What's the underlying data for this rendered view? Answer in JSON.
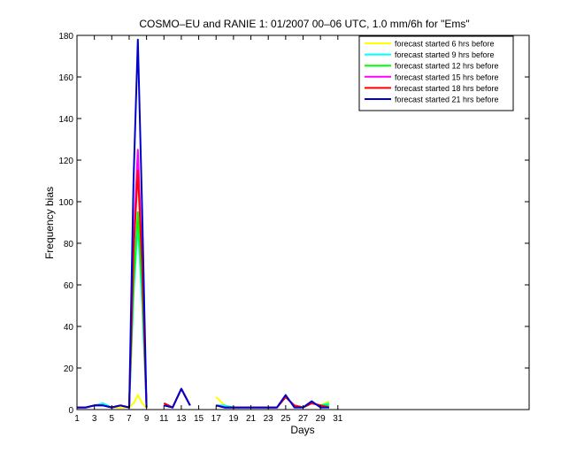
{
  "chart_data": {
    "type": "line",
    "title": "COSMO–EU and RANIE 1: 01/2007 00–06 UTC, 1.0 mm/6h for \"Ems\"",
    "xlabel": "Days",
    "ylabel": "Frequency bias",
    "xlim": [
      1,
      53
    ],
    "ylim": [
      0,
      180
    ],
    "xticks": [
      1,
      3,
      5,
      7,
      9,
      11,
      13,
      15,
      17,
      19,
      21,
      23,
      25,
      27,
      29,
      31
    ],
    "yticks": [
      0,
      20,
      40,
      60,
      80,
      100,
      120,
      140,
      160,
      180
    ],
    "grid": false,
    "legend_position": "top-right",
    "series": [
      {
        "name": "forecast started 6 hrs before",
        "color": "#ffff00",
        "x": [
          1,
          2,
          3,
          4,
          5,
          6,
          7,
          7.5,
          8,
          8.5,
          9,
          null,
          11,
          12,
          13,
          14,
          null,
          17,
          18,
          19,
          20,
          21,
          22,
          23,
          24,
          25,
          26,
          27,
          28,
          29,
          30
        ],
        "y": [
          1,
          1,
          2,
          2,
          1,
          1,
          1,
          3,
          7,
          3,
          1,
          null,
          3,
          1,
          10,
          2,
          null,
          6,
          2,
          1,
          1,
          1,
          1,
          1,
          1,
          6,
          2,
          1,
          3,
          2,
          4
        ]
      },
      {
        "name": "forecast started 9 hrs before",
        "color": "#00ffff",
        "x": [
          1,
          2,
          3,
          4,
          5,
          6,
          7,
          7.5,
          8,
          8.5,
          9,
          null,
          11,
          12,
          13,
          14,
          null,
          17,
          18,
          19,
          20,
          21,
          22,
          23,
          24,
          25,
          26,
          27,
          28,
          29,
          30
        ],
        "y": [
          1,
          1,
          2,
          3,
          1,
          2,
          1,
          55,
          90,
          50,
          1,
          null,
          3,
          1,
          10,
          2,
          null,
          2,
          2,
          1,
          1,
          1,
          1,
          1,
          1,
          6,
          2,
          1,
          3,
          2,
          3
        ]
      },
      {
        "name": "forecast started 12 hrs before",
        "color": "#00ff00",
        "x": [
          1,
          2,
          3,
          4,
          5,
          6,
          7,
          7.5,
          8,
          8.5,
          9,
          null,
          11,
          12,
          13,
          14,
          null,
          17,
          18,
          19,
          20,
          21,
          22,
          23,
          24,
          25,
          26,
          27,
          28,
          29,
          30
        ],
        "y": [
          1,
          1,
          2,
          2,
          1,
          2,
          1,
          60,
          95,
          58,
          1,
          null,
          3,
          1,
          10,
          2,
          null,
          2,
          1,
          1,
          1,
          1,
          1,
          1,
          1,
          6,
          2,
          1,
          3,
          2,
          2
        ]
      },
      {
        "name": "forecast started 15 hrs before",
        "color": "#ff00ff",
        "x": [
          1,
          2,
          3,
          4,
          5,
          6,
          7,
          7.5,
          8,
          8.5,
          9,
          null,
          11,
          12,
          13,
          14,
          null,
          17,
          18,
          19,
          20,
          21,
          22,
          23,
          24,
          25,
          26,
          27,
          28,
          29,
          30
        ],
        "y": [
          1,
          1,
          2,
          2,
          1,
          2,
          1,
          80,
          125,
          70,
          1,
          null,
          3,
          1,
          10,
          2,
          null,
          2,
          1,
          1,
          1,
          1,
          1,
          1,
          1,
          6,
          2,
          1,
          3,
          2,
          1
        ]
      },
      {
        "name": "forecast started 18 hrs before",
        "color": "#ff0000",
        "x": [
          1,
          2,
          3,
          4,
          5,
          6,
          7,
          7.5,
          8,
          8.5,
          9,
          null,
          11,
          12,
          13,
          14,
          null,
          17,
          18,
          19,
          20,
          21,
          22,
          23,
          24,
          25,
          26,
          27,
          28,
          29,
          30
        ],
        "y": [
          1,
          1,
          2,
          2,
          1,
          2,
          1,
          75,
          115,
          68,
          1,
          null,
          3,
          1,
          10,
          2,
          null,
          2,
          1,
          1,
          1,
          1,
          1,
          1,
          1,
          6,
          2,
          1,
          3,
          2,
          1
        ]
      },
      {
        "name": "forecast started 21 hrs before",
        "color": "#0000cc",
        "x": [
          1,
          2,
          3,
          4,
          5,
          6,
          7,
          7.5,
          8,
          8.5,
          9,
          null,
          11,
          12,
          13,
          14,
          null,
          17,
          18,
          19,
          20,
          21,
          22,
          23,
          24,
          25,
          26,
          27,
          28,
          29,
          30
        ],
        "y": [
          1,
          1,
          2,
          2,
          1,
          2,
          1,
          110,
          178,
          95,
          1,
          null,
          2,
          1,
          10,
          2,
          null,
          2,
          1,
          1,
          1,
          1,
          1,
          1,
          1,
          7,
          1,
          1,
          4,
          1,
          1
        ]
      }
    ]
  }
}
